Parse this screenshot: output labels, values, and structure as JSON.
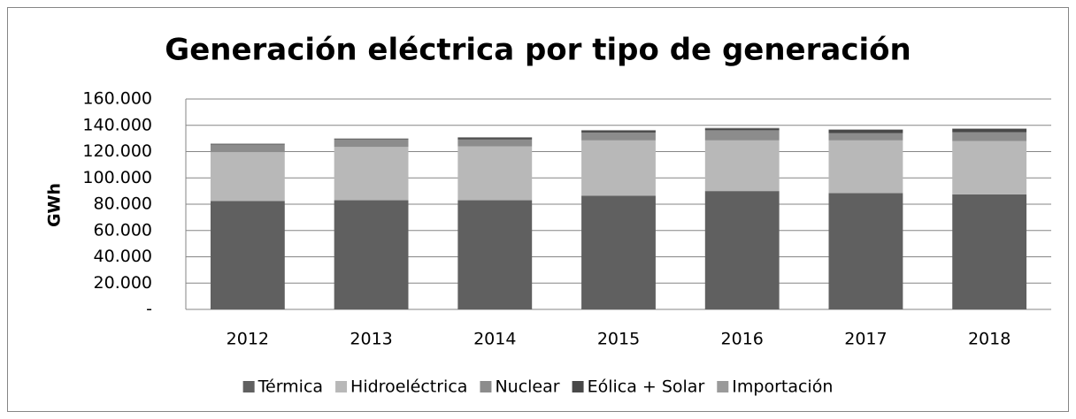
{
  "chart_data": {
    "type": "stacked_bar",
    "title": "Generación eléctrica por tipo de generación",
    "y_label": "GWh",
    "categories": [
      "2012",
      "2013",
      "2014",
      "2015",
      "2016",
      "2017",
      "2018"
    ],
    "series": [
      {
        "name": "Térmica",
        "color": "#606060",
        "values": [
          82500,
          83000,
          83000,
          86500,
          90000,
          88500,
          87500
        ]
      },
      {
        "name": "Hidroeléctrica",
        "color": "#b8b8b8",
        "values": [
          37000,
          40500,
          41000,
          42000,
          38500,
          40000,
          40500
        ]
      },
      {
        "name": "Nuclear",
        "color": "#8c8c8c",
        "values": [
          5900,
          5800,
          5200,
          6000,
          7700,
          5600,
          6800
        ]
      },
      {
        "name": "Eólica + Solar",
        "color": "#484848",
        "values": [
          300,
          500,
          1200,
          1500,
          1500,
          2500,
          2500
        ]
      },
      {
        "name": "Importación",
        "color": "#9a9a9a",
        "values": [
          500,
          300,
          700,
          500,
          400,
          400,
          400
        ]
      }
    ],
    "ylim": [
      0,
      160000
    ],
    "yticks": [
      {
        "value": 0,
        "label": "-"
      },
      {
        "value": 20000,
        "label": "20.000"
      },
      {
        "value": 40000,
        "label": "40.000"
      },
      {
        "value": 60000,
        "label": "60.000"
      },
      {
        "value": 80000,
        "label": "80.000"
      },
      {
        "value": 100000,
        "label": "100.000"
      },
      {
        "value": 120000,
        "label": "120.000"
      },
      {
        "value": 140000,
        "label": "140.000"
      },
      {
        "value": 160000,
        "label": "160.000"
      }
    ],
    "grid": true,
    "legend": "bottom"
  }
}
